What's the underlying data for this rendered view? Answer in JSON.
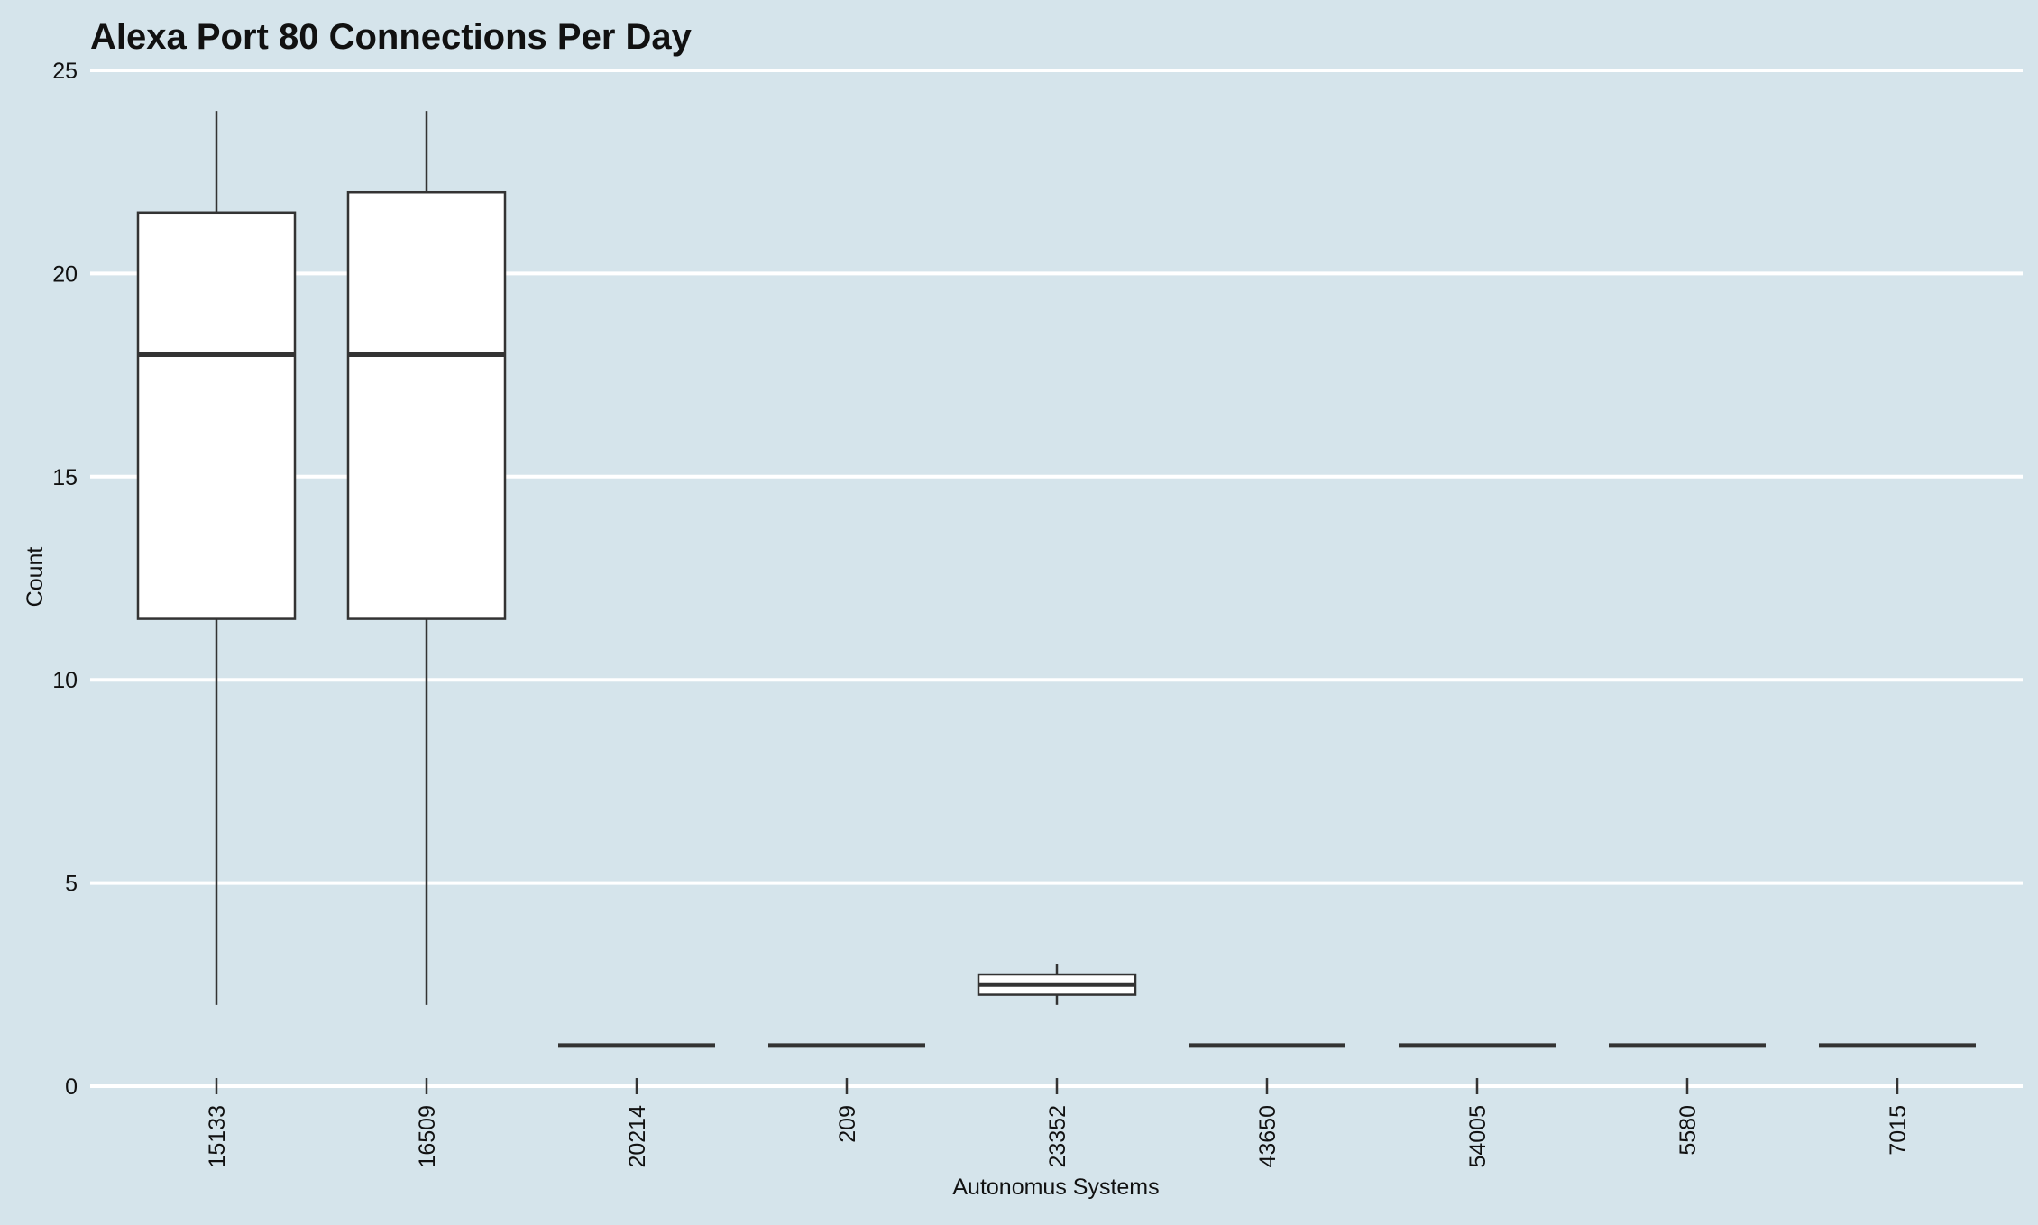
{
  "chart_data": {
    "type": "boxplot",
    "title": "Alexa Port 80 Connections Per Day",
    "xlabel": "Autonomus Systems",
    "ylabel": "Count",
    "ylim": [
      0,
      25
    ],
    "yticks": [
      0,
      5,
      10,
      15,
      20,
      25
    ],
    "grid": "horizontal",
    "categories": [
      "15133",
      "16509",
      "20214",
      "209",
      "23352",
      "43650",
      "54005",
      "5580",
      "7015"
    ],
    "boxes": [
      {
        "category": "15133",
        "min": 2,
        "q1": 11.5,
        "median": 18,
        "q3": 21.5,
        "max": 24
      },
      {
        "category": "16509",
        "min": 2,
        "q1": 11.5,
        "median": 18,
        "q3": 22,
        "max": 24
      },
      {
        "category": "20214",
        "min": 1,
        "q1": 1,
        "median": 1,
        "q3": 1,
        "max": 1
      },
      {
        "category": "209",
        "min": 1,
        "q1": 1,
        "median": 1,
        "q3": 1,
        "max": 1
      },
      {
        "category": "23352",
        "min": 2,
        "q1": 2.25,
        "median": 2.5,
        "q3": 2.75,
        "max": 3
      },
      {
        "category": "43650",
        "min": 1,
        "q1": 1,
        "median": 1,
        "q3": 1,
        "max": 1
      },
      {
        "category": "54005",
        "min": 1,
        "q1": 1,
        "median": 1,
        "q3": 1,
        "max": 1
      },
      {
        "category": "5580",
        "min": 1,
        "q1": 1,
        "median": 1,
        "q3": 1,
        "max": 1
      },
      {
        "category": "7015",
        "min": 1,
        "q1": 1,
        "median": 1,
        "q3": 1,
        "max": 1
      }
    ]
  },
  "colors": {
    "background": "#d5e4eb",
    "grid": "#ffffff",
    "box_fill": "#ffffff",
    "box_stroke": "#333333",
    "text": "#111111"
  }
}
